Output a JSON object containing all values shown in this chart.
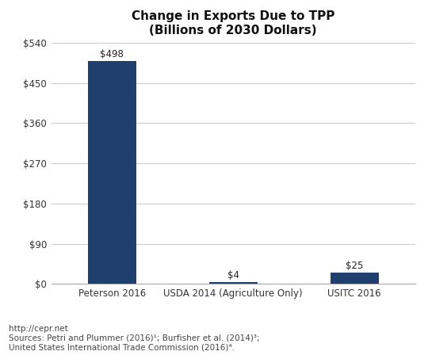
{
  "title": "Change in Exports Due to TPP\n(Billions of 2030 Dollars)",
  "categories": [
    "Peterson 2016",
    "USDA 2014 (Agriculture Only)",
    "USITC 2016"
  ],
  "values": [
    498,
    4,
    25
  ],
  "bar_color": "#1F3F6E",
  "bar_width": 0.4,
  "ylim": [
    0,
    540
  ],
  "yticks": [
    0,
    90,
    180,
    270,
    360,
    450,
    540
  ],
  "ytick_labels": [
    "$0",
    "$90",
    "$180",
    "$270",
    "$360",
    "$450",
    "$540"
  ],
  "value_labels": [
    "$498",
    "$4",
    "$25"
  ],
  "background_color": "#ffffff",
  "plot_bg_color": "#ffffff",
  "grid_color": "#cccccc",
  "footer_line1": "http://cepr.net",
  "footer_line2": "Sources: Petri and Plummer (2016)¹; Burfisher et al. (2014)³;",
  "footer_line3": "United States International Trade Commission (2016)⁴.",
  "title_fontsize": 11,
  "label_fontsize": 8.5,
  "tick_fontsize": 8.5,
  "footer_fontsize": 7.5
}
